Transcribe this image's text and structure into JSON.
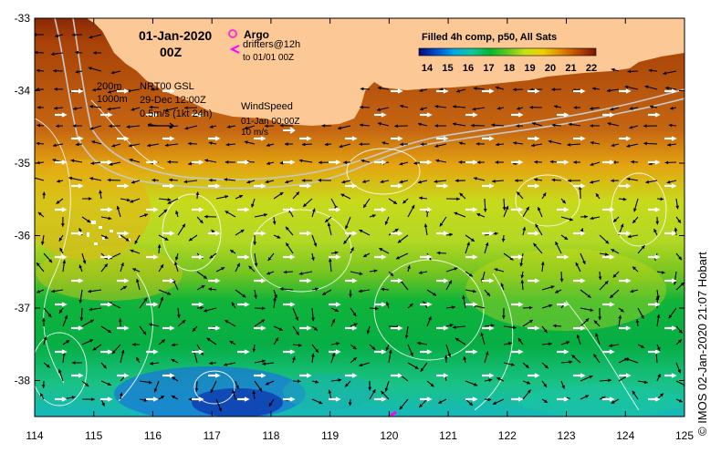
{
  "map": {
    "date": "01-Jan-2020",
    "hour": "00Z",
    "argo_label": "Argo",
    "drifters_label": "drifters@12h",
    "drifters_sub": "to 01/01 00Z",
    "contour_200": "200m",
    "contour_1000": "1000m",
    "model": "NRT00 GSL",
    "model_date": "29-Dec 12:00Z",
    "current_scale": "0.5m/s (1kt 24h)",
    "wind_title": "WindSpeed",
    "wind_date": "01-Jan 00:00Z",
    "wind_scale": "10 m/s",
    "colorbar_title": "Filled 4h comp, p50, All Sats",
    "colorbar_ticks": [
      "14",
      "15",
      "16",
      "17",
      "18",
      "19",
      "20",
      "21",
      "22"
    ],
    "x_ticks": [
      "114",
      "115",
      "116",
      "117",
      "118",
      "119",
      "120",
      "121",
      "122",
      "123",
      "124",
      "125"
    ],
    "y_ticks": [
      "-33",
      "-34",
      "-35",
      "-36",
      "-37",
      "-38"
    ],
    "credit": "© IMOS 02-Jan-2020 21:07 Hobart",
    "colors": {
      "land": "#fbc896",
      "argo": "#ff33cc",
      "drifter": "#ff00ff",
      "wind": "#ffffff",
      "current": "#000000"
    },
    "colorbar_colors": [
      "#0a0a78",
      "#0050d0",
      "#00a8e0",
      "#10c89c",
      "#00b830",
      "#60c81c",
      "#c8e01a",
      "#f0d000",
      "#e08800",
      "#b84800",
      "#7a1800"
    ]
  }
}
